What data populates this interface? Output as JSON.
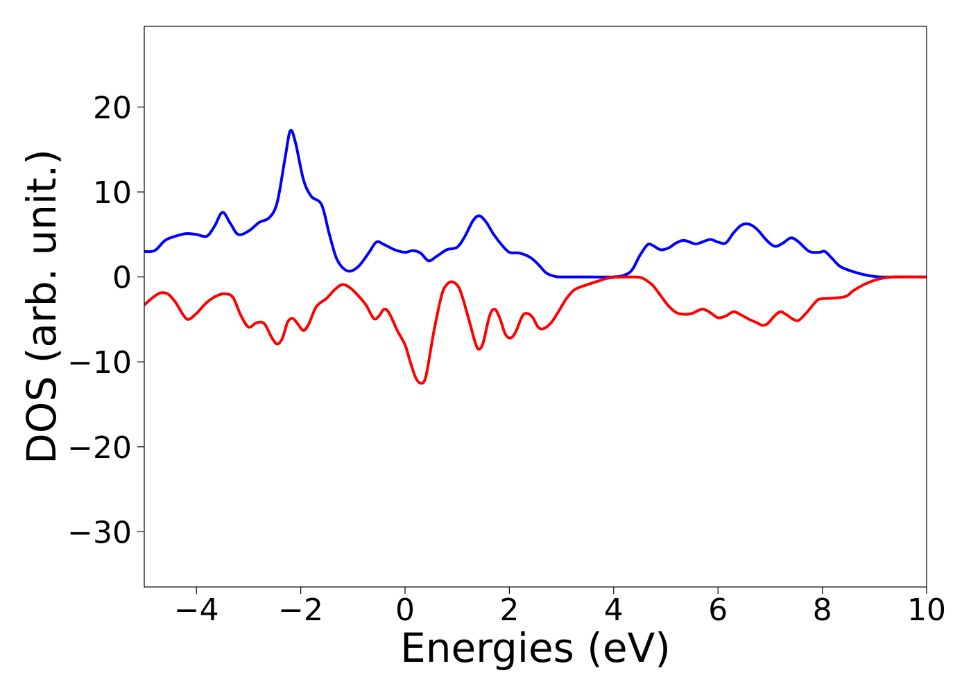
{
  "chart_data": {
    "type": "line",
    "title": "",
    "xlabel": "Energies (eV)",
    "ylabel": "DOS (arb. unit.)",
    "xlim": [
      -5,
      10
    ],
    "ylim": [
      -36.5,
      29.5
    ],
    "grid": false,
    "x_ticks": [
      -4,
      -2,
      0,
      2,
      4,
      6,
      8,
      10
    ],
    "y_ticks": [
      -30,
      -20,
      -10,
      0,
      10,
      20
    ],
    "x_tick_labels": [
      "−4",
      "−2",
      "0",
      "2",
      "4",
      "6",
      "8",
      "10"
    ],
    "y_tick_labels": [
      "−30",
      "−20",
      "−10",
      "0",
      "10",
      "20"
    ],
    "series": [
      {
        "color": "#0000ff",
        "points": [
          [
            -5.0,
            3.0
          ],
          [
            -4.8,
            3.1
          ],
          [
            -4.6,
            4.3
          ],
          [
            -4.4,
            4.8
          ],
          [
            -4.2,
            5.1
          ],
          [
            -4.0,
            5.0
          ],
          [
            -3.8,
            4.8
          ],
          [
            -3.65,
            6.0
          ],
          [
            -3.5,
            7.6
          ],
          [
            -3.35,
            6.3
          ],
          [
            -3.2,
            5.0
          ],
          [
            -3.0,
            5.4
          ],
          [
            -2.8,
            6.4
          ],
          [
            -2.6,
            7.0
          ],
          [
            -2.45,
            8.8
          ],
          [
            -2.3,
            14.0
          ],
          [
            -2.2,
            17.2
          ],
          [
            -2.1,
            15.8
          ],
          [
            -1.95,
            11.5
          ],
          [
            -1.8,
            9.5
          ],
          [
            -1.6,
            8.5
          ],
          [
            -1.45,
            5.0
          ],
          [
            -1.3,
            2.0
          ],
          [
            -1.1,
            0.7
          ],
          [
            -0.9,
            1.2
          ],
          [
            -0.7,
            2.8
          ],
          [
            -0.55,
            4.1
          ],
          [
            -0.4,
            3.8
          ],
          [
            -0.2,
            3.2
          ],
          [
            0.0,
            2.9
          ],
          [
            0.15,
            3.1
          ],
          [
            0.3,
            2.8
          ],
          [
            0.45,
            1.9
          ],
          [
            0.6,
            2.4
          ],
          [
            0.8,
            3.2
          ],
          [
            1.0,
            3.5
          ],
          [
            1.15,
            4.8
          ],
          [
            1.3,
            6.6
          ],
          [
            1.42,
            7.2
          ],
          [
            1.55,
            6.5
          ],
          [
            1.7,
            5.0
          ],
          [
            1.85,
            3.8
          ],
          [
            2.0,
            2.9
          ],
          [
            2.2,
            2.8
          ],
          [
            2.4,
            2.3
          ],
          [
            2.55,
            1.5
          ],
          [
            2.7,
            0.5
          ],
          [
            2.85,
            0.1
          ],
          [
            3.0,
            0.0
          ],
          [
            3.5,
            0.0
          ],
          [
            4.0,
            0.0
          ],
          [
            4.2,
            0.2
          ],
          [
            4.35,
            0.8
          ],
          [
            4.5,
            2.5
          ],
          [
            4.65,
            3.8
          ],
          [
            4.75,
            3.7
          ],
          [
            4.9,
            3.2
          ],
          [
            5.05,
            3.4
          ],
          [
            5.2,
            4.0
          ],
          [
            5.35,
            4.3
          ],
          [
            5.55,
            3.9
          ],
          [
            5.65,
            4.0
          ],
          [
            5.85,
            4.4
          ],
          [
            6.0,
            4.1
          ],
          [
            6.15,
            4.0
          ],
          [
            6.3,
            5.2
          ],
          [
            6.45,
            6.1
          ],
          [
            6.6,
            6.2
          ],
          [
            6.75,
            5.6
          ],
          [
            6.95,
            4.2
          ],
          [
            7.1,
            3.6
          ],
          [
            7.25,
            4.0
          ],
          [
            7.4,
            4.6
          ],
          [
            7.55,
            4.1
          ],
          [
            7.75,
            3.0
          ],
          [
            7.95,
            2.9
          ],
          [
            8.05,
            3.0
          ],
          [
            8.2,
            2.1
          ],
          [
            8.35,
            1.2
          ],
          [
            8.6,
            0.6
          ],
          [
            8.85,
            0.2
          ],
          [
            9.1,
            0.0
          ],
          [
            9.5,
            0.0
          ],
          [
            10.0,
            0.0
          ]
        ]
      },
      {
        "color": "#ff0000",
        "points": [
          [
            -5.0,
            -3.3
          ],
          [
            -4.85,
            -2.5
          ],
          [
            -4.7,
            -1.9
          ],
          [
            -4.55,
            -2.0
          ],
          [
            -4.4,
            -3.0
          ],
          [
            -4.25,
            -4.5
          ],
          [
            -4.15,
            -5.0
          ],
          [
            -4.0,
            -4.3
          ],
          [
            -3.8,
            -3.0
          ],
          [
            -3.6,
            -2.2
          ],
          [
            -3.45,
            -2.0
          ],
          [
            -3.3,
            -2.4
          ],
          [
            -3.15,
            -4.5
          ],
          [
            -3.0,
            -5.9
          ],
          [
            -2.85,
            -5.4
          ],
          [
            -2.7,
            -5.5
          ],
          [
            -2.55,
            -7.2
          ],
          [
            -2.45,
            -7.9
          ],
          [
            -2.35,
            -7.2
          ],
          [
            -2.25,
            -5.3
          ],
          [
            -2.15,
            -4.9
          ],
          [
            -2.05,
            -5.6
          ],
          [
            -1.95,
            -6.3
          ],
          [
            -1.85,
            -5.6
          ],
          [
            -1.7,
            -3.5
          ],
          [
            -1.5,
            -2.5
          ],
          [
            -1.35,
            -1.5
          ],
          [
            -1.2,
            -0.9
          ],
          [
            -1.05,
            -1.3
          ],
          [
            -0.9,
            -2.2
          ],
          [
            -0.75,
            -3.3
          ],
          [
            -0.6,
            -4.9
          ],
          [
            -0.5,
            -4.6
          ],
          [
            -0.4,
            -3.8
          ],
          [
            -0.3,
            -4.3
          ],
          [
            -0.15,
            -6.3
          ],
          [
            0.0,
            -8.0
          ],
          [
            0.1,
            -10.0
          ],
          [
            0.2,
            -11.8
          ],
          [
            0.3,
            -12.5
          ],
          [
            0.4,
            -11.7
          ],
          [
            0.55,
            -6.5
          ],
          [
            0.7,
            -2.2
          ],
          [
            0.8,
            -0.9
          ],
          [
            0.92,
            -0.6
          ],
          [
            1.05,
            -1.5
          ],
          [
            1.2,
            -4.5
          ],
          [
            1.35,
            -7.8
          ],
          [
            1.42,
            -8.5
          ],
          [
            1.5,
            -7.7
          ],
          [
            1.62,
            -4.6
          ],
          [
            1.72,
            -3.8
          ],
          [
            1.82,
            -4.9
          ],
          [
            1.92,
            -6.7
          ],
          [
            2.02,
            -7.2
          ],
          [
            2.12,
            -6.5
          ],
          [
            2.25,
            -4.6
          ],
          [
            2.35,
            -4.3
          ],
          [
            2.45,
            -4.8
          ],
          [
            2.55,
            -5.9
          ],
          [
            2.65,
            -6.1
          ],
          [
            2.8,
            -5.4
          ],
          [
            2.95,
            -4.0
          ],
          [
            3.1,
            -2.5
          ],
          [
            3.25,
            -1.5
          ],
          [
            3.45,
            -1.0
          ],
          [
            3.65,
            -0.6
          ],
          [
            3.85,
            -0.2
          ],
          [
            4.0,
            -0.05
          ],
          [
            4.3,
            0.0
          ],
          [
            4.5,
            -0.05
          ],
          [
            4.6,
            -0.3
          ],
          [
            4.75,
            -1.0
          ],
          [
            4.9,
            -2.2
          ],
          [
            5.05,
            -3.4
          ],
          [
            5.2,
            -4.2
          ],
          [
            5.35,
            -4.4
          ],
          [
            5.5,
            -4.3
          ],
          [
            5.7,
            -3.8
          ],
          [
            5.85,
            -4.2
          ],
          [
            6.0,
            -4.8
          ],
          [
            6.15,
            -4.6
          ],
          [
            6.3,
            -4.1
          ],
          [
            6.45,
            -4.5
          ],
          [
            6.6,
            -5.0
          ],
          [
            6.75,
            -5.4
          ],
          [
            6.85,
            -5.7
          ],
          [
            6.95,
            -5.5
          ],
          [
            7.1,
            -4.5
          ],
          [
            7.2,
            -4.1
          ],
          [
            7.3,
            -4.4
          ],
          [
            7.45,
            -5.0
          ],
          [
            7.55,
            -5.1
          ],
          [
            7.7,
            -4.2
          ],
          [
            7.85,
            -3.1
          ],
          [
            7.95,
            -2.6
          ],
          [
            8.2,
            -2.5
          ],
          [
            8.45,
            -2.3
          ],
          [
            8.6,
            -1.6
          ],
          [
            8.8,
            -0.9
          ],
          [
            9.0,
            -0.4
          ],
          [
            9.2,
            -0.1
          ],
          [
            9.4,
            0.0
          ],
          [
            10.0,
            0.0
          ]
        ]
      }
    ]
  }
}
